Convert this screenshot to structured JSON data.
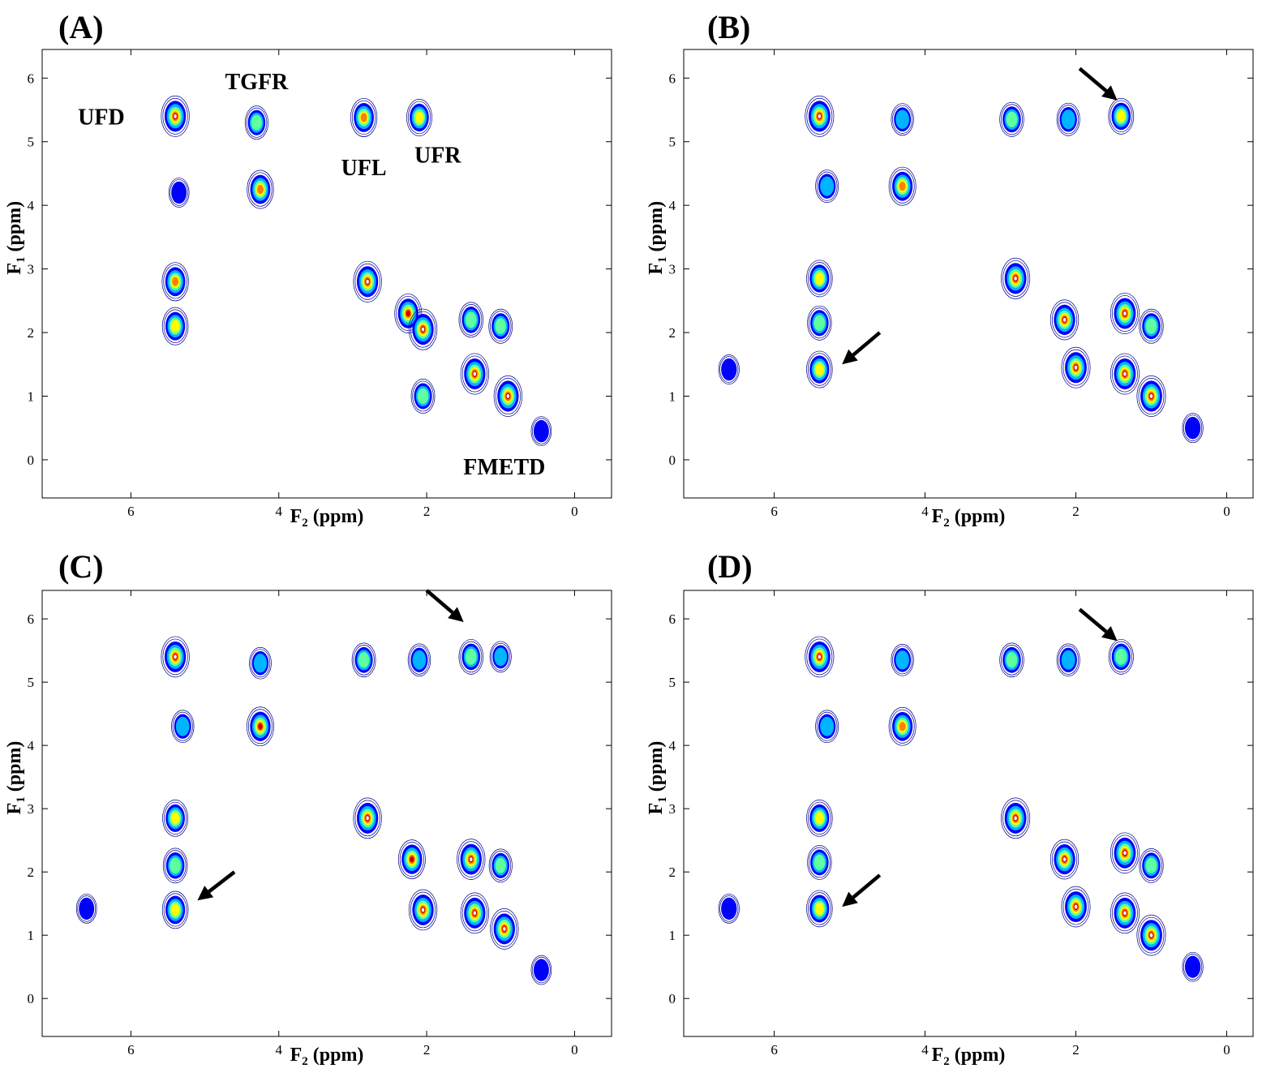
{
  "chart_data": [
    {
      "type": "contour",
      "panel_label": "(A)",
      "xlabel": {
        "main": "F",
        "sub": "2",
        "rest": " (ppm)"
      },
      "ylabel": {
        "main": "F",
        "sub": "1",
        "rest": " (ppm)"
      },
      "xlim": [
        7.2,
        -0.5
      ],
      "ylim": [
        -0.6,
        6.45
      ],
      "xticks": [
        6,
        4,
        2,
        0
      ],
      "yticks": [
        6,
        5,
        4,
        3,
        2,
        1,
        0
      ],
      "peaks": [
        {
          "x": 5.4,
          "y": 5.4,
          "i": 1.0
        },
        {
          "x": 4.3,
          "y": 5.3,
          "i": 0.55
        },
        {
          "x": 2.85,
          "y": 5.38,
          "i": 0.85
        },
        {
          "x": 2.1,
          "y": 5.38,
          "i": 0.75
        },
        {
          "x": 4.25,
          "y": 4.25,
          "i": 0.85
        },
        {
          "x": 5.35,
          "y": 4.2,
          "i": 0.3
        },
        {
          "x": 5.4,
          "y": 2.8,
          "i": 0.85
        },
        {
          "x": 5.4,
          "y": 2.1,
          "i": 0.8
        },
        {
          "x": 2.8,
          "y": 2.8,
          "i": 1.0
        },
        {
          "x": 2.25,
          "y": 2.3,
          "i": 0.9
        },
        {
          "x": 2.05,
          "y": 2.05,
          "i": 1.0
        },
        {
          "x": 1.4,
          "y": 2.2,
          "i": 0.65
        },
        {
          "x": 1.35,
          "y": 1.35,
          "i": 1.0
        },
        {
          "x": 0.9,
          "y": 1.0,
          "i": 1.0
        },
        {
          "x": 1.0,
          "y": 2.1,
          "i": 0.6
        },
        {
          "x": 2.05,
          "y": 1.0,
          "i": 0.6
        },
        {
          "x": 0.45,
          "y": 0.45,
          "i": 0.3
        }
      ],
      "annotations": [
        {
          "text": "UFD",
          "x": 6.4,
          "y": 5.4
        },
        {
          "text": "TGFR",
          "x": 4.3,
          "y": 5.95
        },
        {
          "text": "UFL",
          "x": 2.85,
          "y": 4.6
        },
        {
          "text": "UFR",
          "x": 1.85,
          "y": 4.8
        },
        {
          "text": "FMETD",
          "x": 0.95,
          "y": -0.1
        }
      ],
      "arrows": []
    },
    {
      "type": "contour",
      "panel_label": "(B)",
      "xlabel": {
        "main": "F",
        "sub": "2",
        "rest": " (ppm)"
      },
      "ylabel": {
        "main": "F",
        "sub": "1",
        "rest": " (ppm)"
      },
      "xlim": [
        7.2,
        -0.35
      ],
      "ylim": [
        -0.6,
        6.45
      ],
      "xticks": [
        6,
        4,
        2,
        0
      ],
      "yticks": [
        6,
        5,
        4,
        3,
        2,
        1,
        0
      ],
      "peaks": [
        {
          "x": 5.4,
          "y": 5.4,
          "i": 1.0
        },
        {
          "x": 4.3,
          "y": 5.35,
          "i": 0.45
        },
        {
          "x": 2.85,
          "y": 5.35,
          "i": 0.6
        },
        {
          "x": 2.1,
          "y": 5.35,
          "i": 0.5
        },
        {
          "x": 1.4,
          "y": 5.4,
          "i": 0.7
        },
        {
          "x": 4.3,
          "y": 4.3,
          "i": 0.85
        },
        {
          "x": 5.3,
          "y": 4.3,
          "i": 0.5
        },
        {
          "x": 5.4,
          "y": 2.85,
          "i": 0.75
        },
        {
          "x": 5.4,
          "y": 2.15,
          "i": 0.6
        },
        {
          "x": 5.4,
          "y": 1.42,
          "i": 0.75
        },
        {
          "x": 2.8,
          "y": 2.85,
          "i": 1.0
        },
        {
          "x": 2.15,
          "y": 2.2,
          "i": 0.95
        },
        {
          "x": 1.35,
          "y": 2.3,
          "i": 1.0
        },
        {
          "x": 2.0,
          "y": 1.45,
          "i": 1.0
        },
        {
          "x": 1.35,
          "y": 1.35,
          "i": 1.0
        },
        {
          "x": 1.0,
          "y": 1.0,
          "i": 1.0
        },
        {
          "x": 1.0,
          "y": 2.1,
          "i": 0.6
        },
        {
          "x": 6.6,
          "y": 1.42,
          "i": 0.3
        },
        {
          "x": 0.45,
          "y": 0.5,
          "i": 0.3
        }
      ],
      "annotations": [],
      "arrows": [
        {
          "from": [
            1.95,
            6.15
          ],
          "to": [
            1.45,
            5.65
          ]
        },
        {
          "from": [
            4.6,
            2.0
          ],
          "to": [
            5.1,
            1.5
          ]
        }
      ]
    },
    {
      "type": "contour",
      "panel_label": "(C)",
      "xlabel": {
        "main": "F",
        "sub": "2",
        "rest": " (ppm)"
      },
      "ylabel": {
        "main": "F",
        "sub": "1",
        "rest": " (ppm)"
      },
      "xlim": [
        7.2,
        -0.5
      ],
      "ylim": [
        -0.6,
        6.45
      ],
      "xticks": [
        6,
        4,
        2,
        0
      ],
      "yticks": [
        6,
        5,
        4,
        3,
        2,
        1,
        0
      ],
      "peaks": [
        {
          "x": 5.4,
          "y": 5.4,
          "i": 1.0
        },
        {
          "x": 4.25,
          "y": 5.3,
          "i": 0.45
        },
        {
          "x": 2.85,
          "y": 5.35,
          "i": 0.6
        },
        {
          "x": 2.1,
          "y": 5.35,
          "i": 0.5
        },
        {
          "x": 1.4,
          "y": 5.4,
          "i": 0.65
        },
        {
          "x": 1.0,
          "y": 5.4,
          "i": 0.4
        },
        {
          "x": 4.25,
          "y": 4.3,
          "i": 0.9
        },
        {
          "x": 5.3,
          "y": 4.3,
          "i": 0.5
        },
        {
          "x": 5.4,
          "y": 2.85,
          "i": 0.75
        },
        {
          "x": 5.4,
          "y": 2.1,
          "i": 0.65
        },
        {
          "x": 5.4,
          "y": 1.4,
          "i": 0.8
        },
        {
          "x": 2.8,
          "y": 2.85,
          "i": 1.0
        },
        {
          "x": 2.2,
          "y": 2.2,
          "i": 0.9
        },
        {
          "x": 1.4,
          "y": 2.2,
          "i": 1.0
        },
        {
          "x": 2.05,
          "y": 1.4,
          "i": 1.0
        },
        {
          "x": 1.35,
          "y": 1.35,
          "i": 1.0
        },
        {
          "x": 0.95,
          "y": 1.1,
          "i": 1.0
        },
        {
          "x": 1.0,
          "y": 2.1,
          "i": 0.55
        },
        {
          "x": 6.6,
          "y": 1.42,
          "i": 0.3
        },
        {
          "x": 0.45,
          "y": 0.45,
          "i": 0.3
        }
      ],
      "annotations": [],
      "arrows": [
        {
          "from": [
            2.0,
            6.45
          ],
          "to": [
            1.5,
            5.95
          ]
        },
        {
          "from": [
            4.6,
            2.0
          ],
          "to": [
            5.1,
            1.55
          ]
        }
      ]
    },
    {
      "type": "contour",
      "panel_label": "(D)",
      "xlabel": {
        "main": "F",
        "sub": "2",
        "rest": " (ppm)"
      },
      "ylabel": {
        "main": "F",
        "sub": "1",
        "rest": " (ppm)"
      },
      "xlim": [
        7.2,
        -0.35
      ],
      "ylim": [
        -0.6,
        6.45
      ],
      "xticks": [
        6,
        4,
        2,
        0
      ],
      "yticks": [
        6,
        5,
        4,
        3,
        2,
        1,
        0
      ],
      "peaks": [
        {
          "x": 5.4,
          "y": 5.4,
          "i": 1.0
        },
        {
          "x": 4.3,
          "y": 5.35,
          "i": 0.45
        },
        {
          "x": 2.85,
          "y": 5.35,
          "i": 0.6
        },
        {
          "x": 2.1,
          "y": 5.35,
          "i": 0.5
        },
        {
          "x": 1.4,
          "y": 5.4,
          "i": 0.65
        },
        {
          "x": 4.3,
          "y": 4.3,
          "i": 0.85
        },
        {
          "x": 5.3,
          "y": 4.3,
          "i": 0.5
        },
        {
          "x": 5.4,
          "y": 2.85,
          "i": 0.75
        },
        {
          "x": 5.4,
          "y": 2.15,
          "i": 0.6
        },
        {
          "x": 5.4,
          "y": 1.42,
          "i": 0.75
        },
        {
          "x": 2.8,
          "y": 2.85,
          "i": 1.0
        },
        {
          "x": 2.15,
          "y": 2.2,
          "i": 0.95
        },
        {
          "x": 1.35,
          "y": 2.3,
          "i": 1.0
        },
        {
          "x": 2.0,
          "y": 1.45,
          "i": 1.0
        },
        {
          "x": 1.35,
          "y": 1.35,
          "i": 1.0
        },
        {
          "x": 1.0,
          "y": 1.0,
          "i": 1.0
        },
        {
          "x": 1.0,
          "y": 2.1,
          "i": 0.6
        },
        {
          "x": 6.6,
          "y": 1.42,
          "i": 0.3
        },
        {
          "x": 0.45,
          "y": 0.5,
          "i": 0.3
        }
      ],
      "annotations": [],
      "arrows": [
        {
          "from": [
            1.95,
            6.15
          ],
          "to": [
            1.45,
            5.65
          ]
        },
        {
          "from": [
            4.6,
            1.95
          ],
          "to": [
            5.1,
            1.45
          ]
        }
      ]
    }
  ],
  "colors": {
    "axis": "#000000",
    "contour_outer": "#00008f",
    "contour_blue": "#0000ff",
    "contour_cyan": "#00b4ff",
    "contour_green": "#5fff9f",
    "contour_yellow": "#ffff00",
    "contour_orange": "#ff8000",
    "contour_red": "#cc0000",
    "contour_core": "#ffffff"
  }
}
